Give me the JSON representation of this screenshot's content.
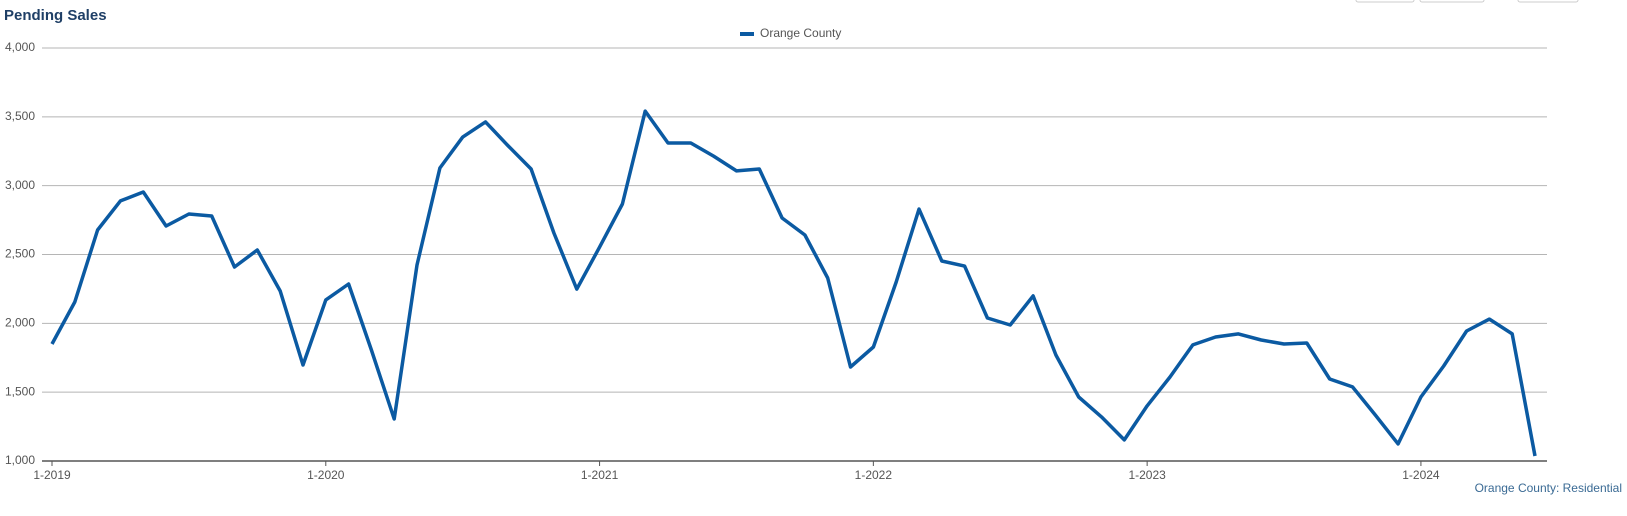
{
  "chart_data": {
    "type": "line",
    "title": "Pending Sales",
    "footnote": "Orange County: Residential",
    "categories": [
      "1-2019",
      null,
      null,
      null,
      null,
      null,
      null,
      null,
      null,
      null,
      null,
      null,
      "1-2020",
      null,
      null,
      null,
      null,
      null,
      null,
      null,
      null,
      null,
      null,
      null,
      "1-2021",
      null,
      null,
      null,
      null,
      null,
      null,
      null,
      null,
      null,
      null,
      null,
      "1-2022",
      null,
      null,
      null,
      null,
      null,
      null,
      null,
      null,
      null,
      null,
      null,
      "1-2023",
      null,
      null,
      null,
      null,
      null,
      null,
      null,
      null,
      null,
      null,
      null,
      "1-2024",
      null,
      null,
      null,
      null,
      null
    ],
    "series": [
      {
        "name": "Orange County",
        "color": "#0b5aa2",
        "values": [
          1850,
          2155,
          2678,
          2889,
          2954,
          2707,
          2794,
          2780,
          2409,
          2533,
          2235,
          1697,
          2170,
          2286,
          1806,
          1305,
          2424,
          3128,
          3353,
          3463,
          3288,
          3121,
          2656,
          2249,
          2554,
          2867,
          3542,
          3310,
          3310,
          3215,
          3107,
          3121,
          2765,
          2642,
          2329,
          1683,
          1828,
          2300,
          2830,
          2453,
          2416,
          2039,
          1988,
          2199,
          1770,
          1465,
          1320,
          1153,
          1400,
          1610,
          1843,
          1901,
          1923,
          1879,
          1850,
          1857,
          1596,
          1538,
          1334,
          1124,
          1465,
          1690,
          1944,
          2031,
          1923,
          1036
        ]
      }
    ],
    "ylim": [
      1000,
      4000
    ],
    "yticks": [
      {
        "value": 1000,
        "label": "1,000"
      },
      {
        "value": 1500,
        "label": "1,500"
      },
      {
        "value": 2000,
        "label": "2,000"
      },
      {
        "value": 2500,
        "label": "2,500"
      },
      {
        "value": 3000,
        "label": "3,000"
      },
      {
        "value": 3500,
        "label": "3,500"
      },
      {
        "value": 4000,
        "label": "4,000"
      }
    ],
    "grid": true
  }
}
